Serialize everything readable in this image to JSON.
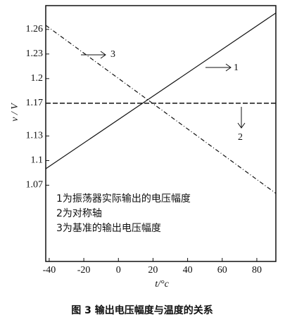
{
  "chart_data": {
    "type": "line",
    "caption": "图 3   输出电压幅度与温度的关系",
    "xlabel": "t/°c",
    "ylabel": "v / V",
    "x": [
      -42,
      91
    ],
    "series": [
      {
        "label": "1",
        "color": "#111111",
        "style": "solid",
        "values": [
          1.09,
          1.28
        ]
      },
      {
        "label": "2",
        "color": "#111111",
        "style": "dashed",
        "values": [
          1.17,
          1.17
        ]
      },
      {
        "label": "3",
        "color": "#111111",
        "style": "dashdot",
        "values": [
          1.265,
          1.06
        ]
      }
    ],
    "notes": [
      "1为振荡器实际输出的电压幅度",
      "2为对称轴",
      "3为基准的输出电压幅度"
    ],
    "xlim": [
      -42,
      91
    ],
    "ylim": [
      0.977,
      1.289
    ],
    "xticks": [
      -40,
      -20,
      0,
      20,
      40,
      60,
      80
    ],
    "yticks": [
      1.07,
      1.1,
      1.13,
      1.17,
      1.2,
      1.23,
      1.26
    ]
  }
}
